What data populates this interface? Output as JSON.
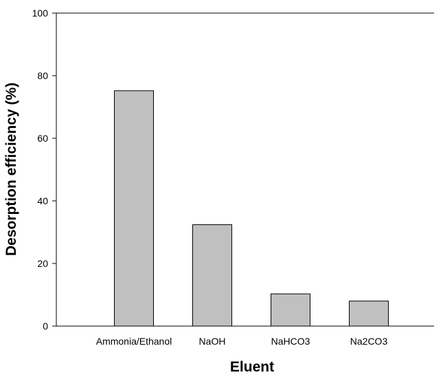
{
  "chart_data": {
    "type": "bar",
    "title": "",
    "xlabel": "Eluent",
    "ylabel": "Desorption efficiency (%)",
    "categories": [
      "Ammonia/Ethanol",
      "NaOH",
      "NaHCO3",
      "Na2CO3"
    ],
    "values": [
      75.2,
      32.4,
      10.3,
      8.0
    ],
    "ylim": [
      0,
      100
    ],
    "yticks": [
      0,
      20,
      40,
      60,
      80,
      100
    ],
    "grid": false,
    "bar_color": "#c0c0c0",
    "bar_edge_color": "#000000"
  }
}
